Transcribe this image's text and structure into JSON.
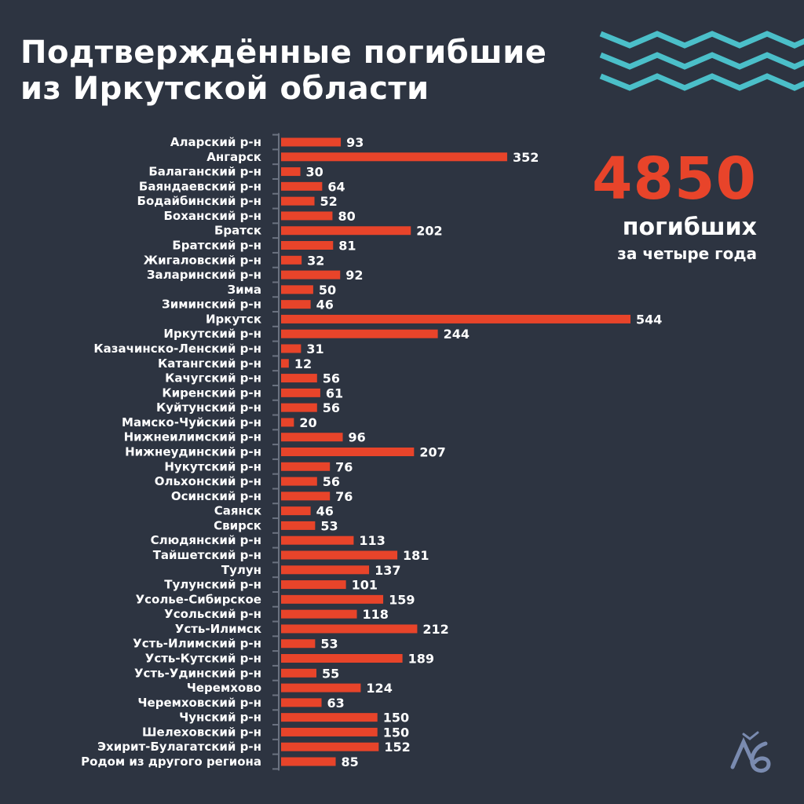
{
  "title_line1": "Подтверждённые погибшие",
  "title_line2": "из Иркутской области",
  "total": {
    "value": "4850",
    "label1": "погибших",
    "label2": "за четыре года"
  },
  "colors": {
    "background": "#2d3441",
    "bar": "#e8442a",
    "accent": "#4bbfc9",
    "text": "#ffffff"
  },
  "logo": "lb-logo",
  "chart_data": {
    "type": "bar",
    "orientation": "horizontal",
    "title": "Подтверждённые погибшие из Иркутской области",
    "categories": [
      "Аларский р-н",
      "Ангарск",
      "Балаганский р-н",
      "Баяндаевский р-н",
      "Бодайбинский р-н",
      "Боханский р-н",
      "Братск",
      "Братский р-н",
      "Жигаловский р-н",
      "Заларинский р-н",
      "Зима",
      "Зиминский р-н",
      "Иркутск",
      "Иркутский р-н",
      "Казачинско-Ленский р-н",
      "Катангский р-н",
      "Качугский р-н",
      "Киренский р-н",
      "Куйтунский р-н",
      "Мамско-Чуйский р-н",
      "Нижнеилимский р-н",
      "Нижнеудинский р-н",
      "Нукутский р-н",
      "Ольхонский р-н",
      "Осинский р-н",
      "Саянск",
      "Свирск",
      "Слюдянский р-н",
      "Тайшетский р-н",
      "Тулун",
      "Тулунский р-н",
      "Усолье-Сибирское",
      "Усольский р-н",
      "Усть-Илимск",
      "Усть-Илимский р-н",
      "Усть-Кутский р-н",
      "Усть-Удинский р-н",
      "Черемхово",
      "Черемховский р-н",
      "Чунский р-н",
      "Шелеховский р-н",
      "Эхирит-Булагатский р-н",
      "Родом из другого региона"
    ],
    "values": [
      93,
      352,
      30,
      64,
      52,
      80,
      202,
      81,
      32,
      92,
      50,
      46,
      544,
      244,
      31,
      12,
      56,
      61,
      56,
      20,
      96,
      207,
      76,
      56,
      76,
      46,
      53,
      113,
      181,
      137,
      101,
      159,
      118,
      212,
      53,
      189,
      55,
      124,
      63,
      150,
      150,
      152,
      85
    ],
    "data_labels": true,
    "grid": false
  }
}
